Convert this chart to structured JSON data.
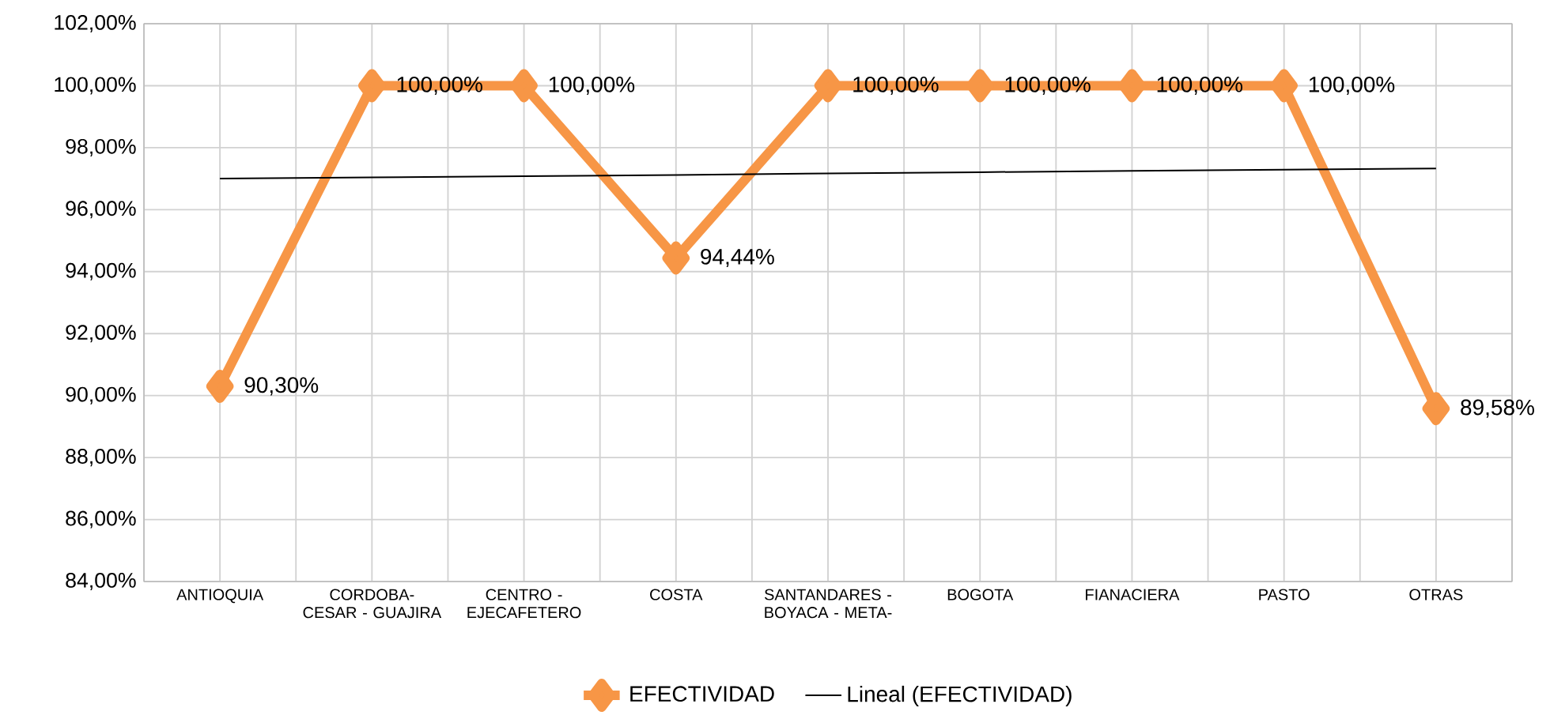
{
  "chart_data": {
    "type": "line",
    "categories": [
      "ANTIOQUIA",
      "CORDOBA- CESAR - GUAJIRA",
      "CENTRO - EJECAFETERO",
      "COSTA",
      "SANTANDARES - BOYACA - META-",
      "BOGOTA",
      "FIANACIERA",
      "PASTO",
      "OTRAS"
    ],
    "series": [
      {
        "name": "EFECTIVIDAD",
        "color": "#f79646",
        "marker": "diamond",
        "values": [
          90.3,
          100,
          100,
          94.44,
          100,
          100,
          100,
          100,
          89.58
        ],
        "value_labels": [
          "90,30%",
          "100,00%",
          "100,00%",
          "94,44%",
          "100,00%",
          "100,00%",
          "100,00%",
          "100,00%",
          "89,58%"
        ]
      },
      {
        "name": "Lineal (EFECTIVIDAD)",
        "type": "line",
        "color": "#000000",
        "marker": "none",
        "values": [
          97.0,
          97.04,
          97.08,
          97.12,
          97.17,
          97.21,
          97.25,
          97.29,
          97.33
        ]
      }
    ],
    "ylim": [
      84,
      102
    ],
    "yticks": [
      {
        "value": 84,
        "label": "84,00%"
      },
      {
        "value": 86,
        "label": "86,00%"
      },
      {
        "value": 88,
        "label": "88,00%"
      },
      {
        "value": 90,
        "label": "90,00%"
      },
      {
        "value": 92,
        "label": "92,00%"
      },
      {
        "value": 94,
        "label": "94,00%"
      },
      {
        "value": 96,
        "label": "96,00%"
      },
      {
        "value": 98,
        "label": "98,00%"
      },
      {
        "value": 100,
        "label": "100,00%"
      },
      {
        "value": 102,
        "label": "102,00%"
      }
    ],
    "grid": true,
    "legend": "bottom"
  }
}
